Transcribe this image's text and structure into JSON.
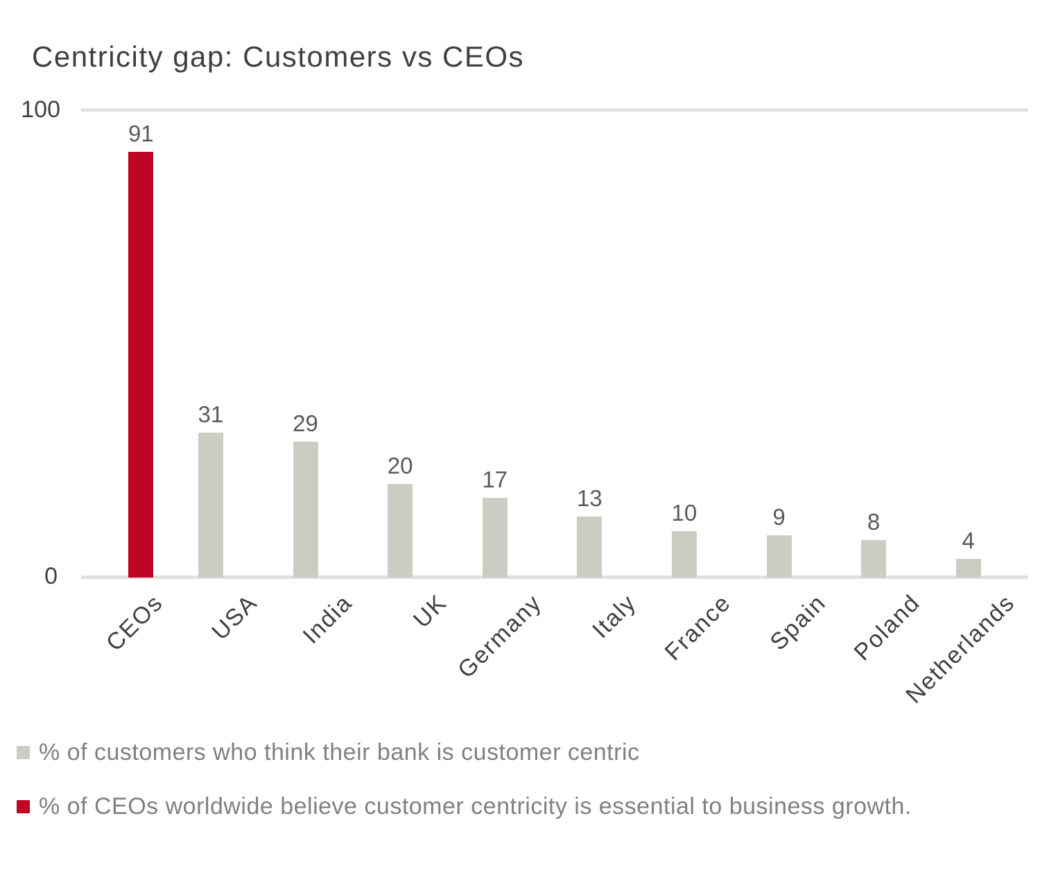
{
  "chart_data": {
    "type": "bar",
    "title": "Centricity gap: Customers vs CEOs",
    "categories": [
      "CEOs",
      "USA",
      "India",
      "UK",
      "Germany",
      "Italy",
      "France",
      "Spain",
      "Poland",
      "Netherlands"
    ],
    "series": [
      {
        "name": "% of customers who think their bank is customer centric",
        "color": "#CDCCC3",
        "values": [
          null,
          31,
          29,
          20,
          17,
          13,
          10,
          9,
          8,
          4
        ]
      },
      {
        "name": "% of CEOs worldwide believe customer centricity is essential to business growth.",
        "color": "#BF0426",
        "values": [
          91,
          null,
          null,
          null,
          null,
          null,
          null,
          null,
          null,
          null
        ]
      }
    ],
    "ylim": [
      0,
      100
    ],
    "yticks": [
      {
        "value": 100,
        "label": "100"
      },
      {
        "value": 0,
        "label": "0"
      }
    ],
    "data_labels": [
      91,
      31,
      29,
      20,
      17,
      13,
      10,
      9,
      8,
      4
    ],
    "xlabel": "",
    "ylabel": "",
    "grid": "horizontal line at 100 and baseline at 0 only",
    "legend_position": "bottom-left",
    "colors": {
      "title_text": "#3F3F3F",
      "axis_tick_text": "#404040",
      "data_label_text": "#595959",
      "x_label_text": "#3F3F3F",
      "legend_text": "#808080",
      "gridline": "#E2E2E2",
      "background": "#FFFFFF"
    }
  }
}
